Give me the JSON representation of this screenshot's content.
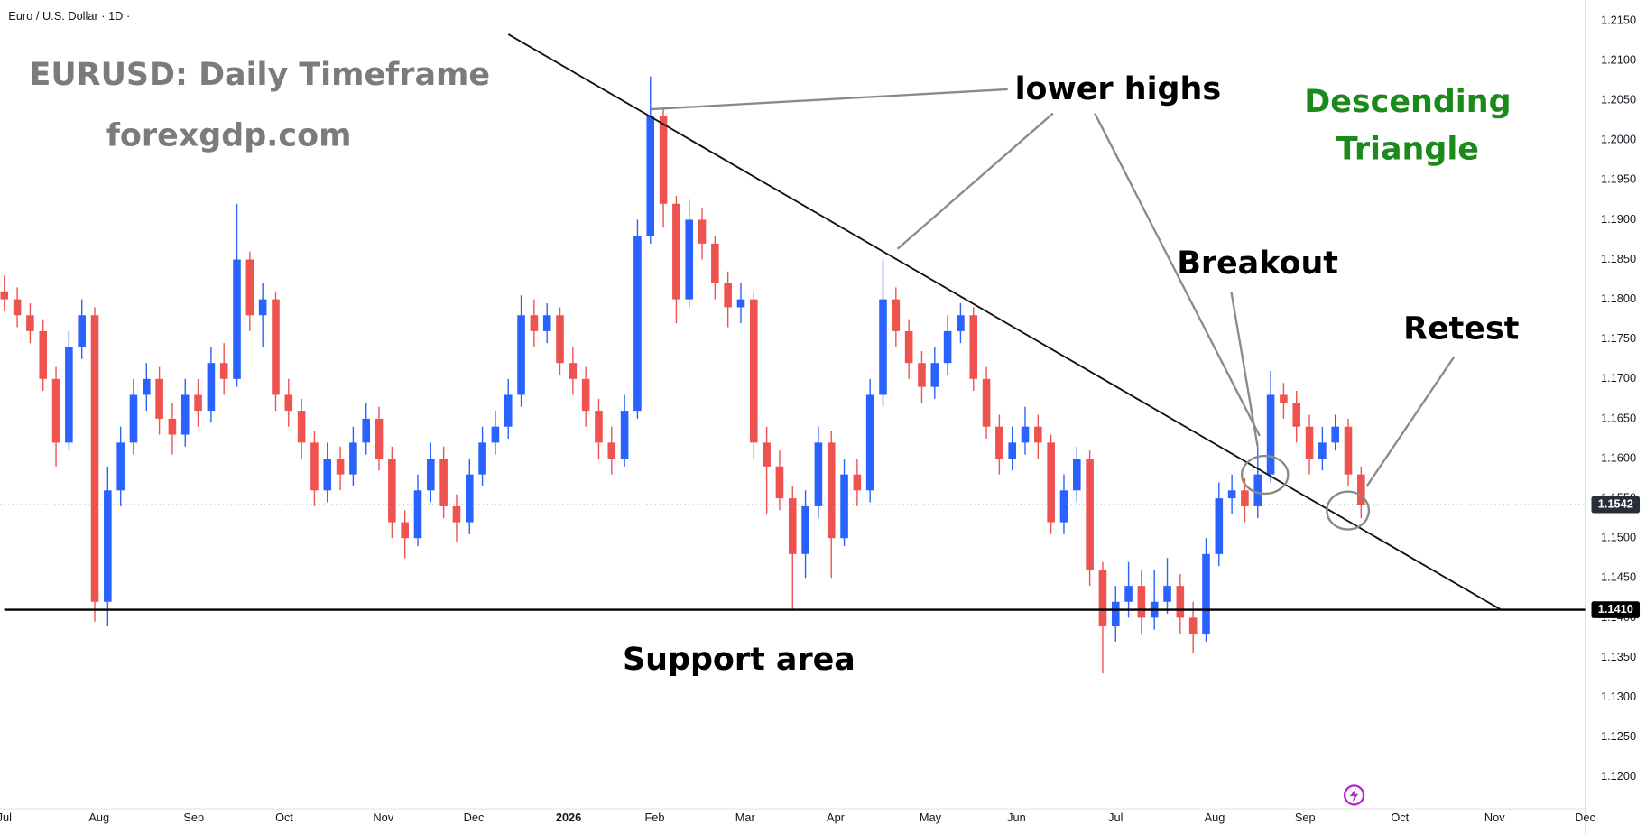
{
  "chart_data": {
    "type": "candlestick",
    "title": "Euro / U.S. Dollar · 1D ·",
    "annotations": [
      "EURUSD: Daily Timeframe",
      "forexgdp.com",
      "lower highs",
      "Descending",
      "Triangle",
      "Breakout",
      "Retest",
      "Support area"
    ],
    "up_color": "#2962ff",
    "down_color": "#ef5350",
    "grid": false,
    "x": [
      0,
      3,
      6,
      9,
      12,
      15,
      18,
      21,
      24,
      27,
      30,
      33,
      36,
      39,
      42,
      45,
      48,
      51,
      54,
      57,
      60,
      63,
      66,
      69,
      72,
      75,
      78,
      81,
      84,
      87,
      90,
      93,
      96,
      99,
      102,
      105,
      108,
      111,
      114,
      117,
      120,
      123,
      126,
      129,
      132,
      135,
      138,
      141,
      144,
      147,
      150,
      153,
      156,
      159,
      162,
      165,
      168,
      171,
      174,
      177,
      180,
      183,
      186,
      189,
      192,
      195,
      198,
      201,
      204,
      207,
      210,
      213,
      216,
      219,
      222,
      225,
      228,
      231,
      234,
      237,
      240,
      243,
      246,
      249,
      252,
      255,
      258,
      261,
      264,
      267,
      270,
      273,
      276,
      279,
      282,
      285,
      288,
      291,
      294,
      297,
      300,
      303,
      306,
      309,
      312,
      315
    ],
    "open": [
      1.181,
      1.18,
      1.178,
      1.176,
      1.17,
      1.162,
      1.174,
      1.178,
      1.142,
      1.156,
      1.162,
      1.168,
      1.17,
      1.165,
      1.163,
      1.168,
      1.166,
      1.172,
      1.17,
      1.185,
      1.178,
      1.18,
      1.168,
      1.166,
      1.162,
      1.156,
      1.16,
      1.158,
      1.162,
      1.165,
      1.16,
      1.152,
      1.15,
      1.156,
      1.16,
      1.154,
      1.152,
      1.158,
      1.162,
      1.164,
      1.168,
      1.178,
      1.176,
      1.178,
      1.172,
      1.17,
      1.166,
      1.162,
      1.16,
      1.166,
      1.188,
      1.203,
      1.192,
      1.18,
      1.19,
      1.187,
      1.182,
      1.179,
      1.18,
      1.162,
      1.159,
      1.155,
      1.148,
      1.154,
      1.162,
      1.15,
      1.158,
      1.156,
      1.168,
      1.18,
      1.176,
      1.172,
      1.169,
      1.172,
      1.176,
      1.178,
      1.17,
      1.164,
      1.16,
      1.162,
      1.164,
      1.162,
      1.152,
      1.156,
      1.16,
      1.146,
      1.139,
      1.142,
      1.144,
      1.14,
      1.142,
      1.144,
      1.14,
      1.138,
      1.148,
      1.155,
      1.156,
      1.154,
      1.158,
      1.168,
      1.167,
      1.164,
      1.16,
      1.162,
      1.164,
      1.158
    ],
    "high": [
      1.183,
      1.1815,
      1.1795,
      1.1775,
      1.1715,
      1.176,
      1.18,
      1.179,
      1.159,
      1.164,
      1.17,
      1.172,
      1.1715,
      1.167,
      1.17,
      1.17,
      1.174,
      1.1745,
      1.192,
      1.186,
      1.182,
      1.181,
      1.17,
      1.1675,
      1.1635,
      1.162,
      1.1615,
      1.164,
      1.167,
      1.1665,
      1.1615,
      1.1535,
      1.158,
      1.162,
      1.1615,
      1.1555,
      1.16,
      1.164,
      1.166,
      1.17,
      1.1805,
      1.18,
      1.1795,
      1.179,
      1.174,
      1.1715,
      1.1675,
      1.164,
      1.168,
      1.19,
      1.208,
      1.204,
      1.193,
      1.1925,
      1.1915,
      1.188,
      1.1835,
      1.182,
      1.181,
      1.164,
      1.161,
      1.1565,
      1.156,
      1.164,
      1.1635,
      1.16,
      1.16,
      1.17,
      1.185,
      1.1815,
      1.1775,
      1.1735,
      1.174,
      1.178,
      1.1795,
      1.179,
      1.1715,
      1.1655,
      1.164,
      1.1665,
      1.1655,
      1.163,
      1.158,
      1.1615,
      1.161,
      1.147,
      1.144,
      1.147,
      1.146,
      1.146,
      1.1475,
      1.1455,
      1.142,
      1.15,
      1.157,
      1.158,
      1.1575,
      1.1615,
      1.171,
      1.1695,
      1.1685,
      1.1655,
      1.164,
      1.1655,
      1.165,
      1.159
    ],
    "low": [
      1.1785,
      1.1765,
      1.1745,
      1.1685,
      1.159,
      1.161,
      1.1725,
      1.1395,
      1.139,
      1.154,
      1.1605,
      1.166,
      1.163,
      1.1605,
      1.1615,
      1.164,
      1.1645,
      1.168,
      1.169,
      1.176,
      1.174,
      1.166,
      1.164,
      1.16,
      1.154,
      1.1545,
      1.156,
      1.1565,
      1.1605,
      1.1585,
      1.15,
      1.1475,
      1.149,
      1.1545,
      1.1525,
      1.1495,
      1.1505,
      1.1565,
      1.1605,
      1.1625,
      1.1665,
      1.174,
      1.1745,
      1.1705,
      1.168,
      1.164,
      1.16,
      1.158,
      1.159,
      1.165,
      1.187,
      1.189,
      1.177,
      1.179,
      1.185,
      1.18,
      1.1765,
      1.177,
      1.16,
      1.153,
      1.1535,
      1.141,
      1.145,
      1.1525,
      1.145,
      1.149,
      1.154,
      1.1545,
      1.1665,
      1.174,
      1.17,
      1.167,
      1.1675,
      1.1705,
      1.1745,
      1.1685,
      1.1625,
      1.158,
      1.1585,
      1.1605,
      1.16,
      1.1505,
      1.1505,
      1.1545,
      1.144,
      1.133,
      1.137,
      1.14,
      1.138,
      1.1385,
      1.1405,
      1.138,
      1.1355,
      1.137,
      1.1465,
      1.153,
      1.152,
      1.1525,
      1.157,
      1.165,
      1.162,
      1.158,
      1.1585,
      1.161,
      1.1565,
      1.1525
    ],
    "close": [
      1.18,
      1.178,
      1.176,
      1.17,
      1.162,
      1.174,
      1.178,
      1.142,
      1.156,
      1.162,
      1.168,
      1.17,
      1.165,
      1.163,
      1.168,
      1.166,
      1.172,
      1.17,
      1.185,
      1.178,
      1.18,
      1.168,
      1.166,
      1.162,
      1.156,
      1.16,
      1.158,
      1.162,
      1.165,
      1.16,
      1.152,
      1.15,
      1.156,
      1.16,
      1.154,
      1.152,
      1.158,
      1.162,
      1.164,
      1.168,
      1.178,
      1.176,
      1.178,
      1.172,
      1.17,
      1.166,
      1.162,
      1.16,
      1.166,
      1.188,
      1.203,
      1.192,
      1.18,
      1.19,
      1.187,
      1.182,
      1.179,
      1.18,
      1.162,
      1.159,
      1.155,
      1.148,
      1.154,
      1.162,
      1.15,
      1.158,
      1.156,
      1.168,
      1.18,
      1.176,
      1.172,
      1.169,
      1.172,
      1.176,
      1.178,
      1.17,
      1.164,
      1.16,
      1.162,
      1.164,
      1.162,
      1.152,
      1.156,
      1.16,
      1.146,
      1.139,
      1.142,
      1.144,
      1.14,
      1.142,
      1.144,
      1.14,
      1.138,
      1.148,
      1.155,
      1.156,
      1.154,
      1.158,
      1.168,
      1.167,
      1.164,
      1.16,
      1.162,
      1.164,
      1.158,
      1.1542
    ],
    "xlim": [
      -1,
      367
    ],
    "ylim": [
      1.116,
      1.2176
    ],
    "xticks": [
      {
        "value": 0,
        "label": "Jul"
      },
      {
        "value": 22,
        "label": "Aug"
      },
      {
        "value": 44,
        "label": "Sep"
      },
      {
        "value": 65,
        "label": "Oct"
      },
      {
        "value": 88,
        "label": "Nov"
      },
      {
        "value": 109,
        "label": "Dec"
      },
      {
        "value": 131,
        "label": "2026"
      },
      {
        "value": 151,
        "label": "Feb"
      },
      {
        "value": 172,
        "label": "Mar"
      },
      {
        "value": 193,
        "label": "Apr"
      },
      {
        "value": 215,
        "label": "May"
      },
      {
        "value": 235,
        "label": "Jun"
      },
      {
        "value": 258,
        "label": "Jul"
      },
      {
        "value": 281,
        "label": "Aug"
      },
      {
        "value": 302,
        "label": "Sep"
      },
      {
        "value": 324,
        "label": "Oct"
      },
      {
        "value": 346,
        "label": "Nov"
      },
      {
        "value": 367,
        "label": "Dec"
      }
    ],
    "yticks": [
      {
        "value": 1.12,
        "label": "1.1200"
      },
      {
        "value": 1.125,
        "label": "1.1250"
      },
      {
        "value": 1.13,
        "label": "1.1300"
      },
      {
        "value": 1.135,
        "label": "1.1350"
      },
      {
        "value": 1.14,
        "label": "1.1400"
      },
      {
        "value": 1.145,
        "label": "1.1450"
      },
      {
        "value": 1.15,
        "label": "1.1500"
      },
      {
        "value": 1.155,
        "label": "1.1550"
      },
      {
        "value": 1.16,
        "label": "1.1600"
      },
      {
        "value": 1.165,
        "label": "1.1650"
      },
      {
        "value": 1.17,
        "label": "1.1700"
      },
      {
        "value": 1.175,
        "label": "1.1750"
      },
      {
        "value": 1.18,
        "label": "1.1800"
      },
      {
        "value": 1.185,
        "label": "1.1850"
      },
      {
        "value": 1.19,
        "label": "1.1900"
      },
      {
        "value": 1.195,
        "label": "1.1950"
      },
      {
        "value": 1.2,
        "label": "1.2000"
      },
      {
        "value": 1.205,
        "label": "1.2050"
      },
      {
        "value": 1.21,
        "label": "1.2100"
      },
      {
        "value": 1.215,
        "label": "1.2150"
      }
    ],
    "trendline": {
      "x": [
        117,
        347.5
      ],
      "y": [
        1.2133,
        1.141
      ]
    },
    "support": {
      "value": 1.141,
      "label": "1.1410"
    },
    "last_price": {
      "value": 1.1542,
      "label": "1.1542"
    }
  }
}
